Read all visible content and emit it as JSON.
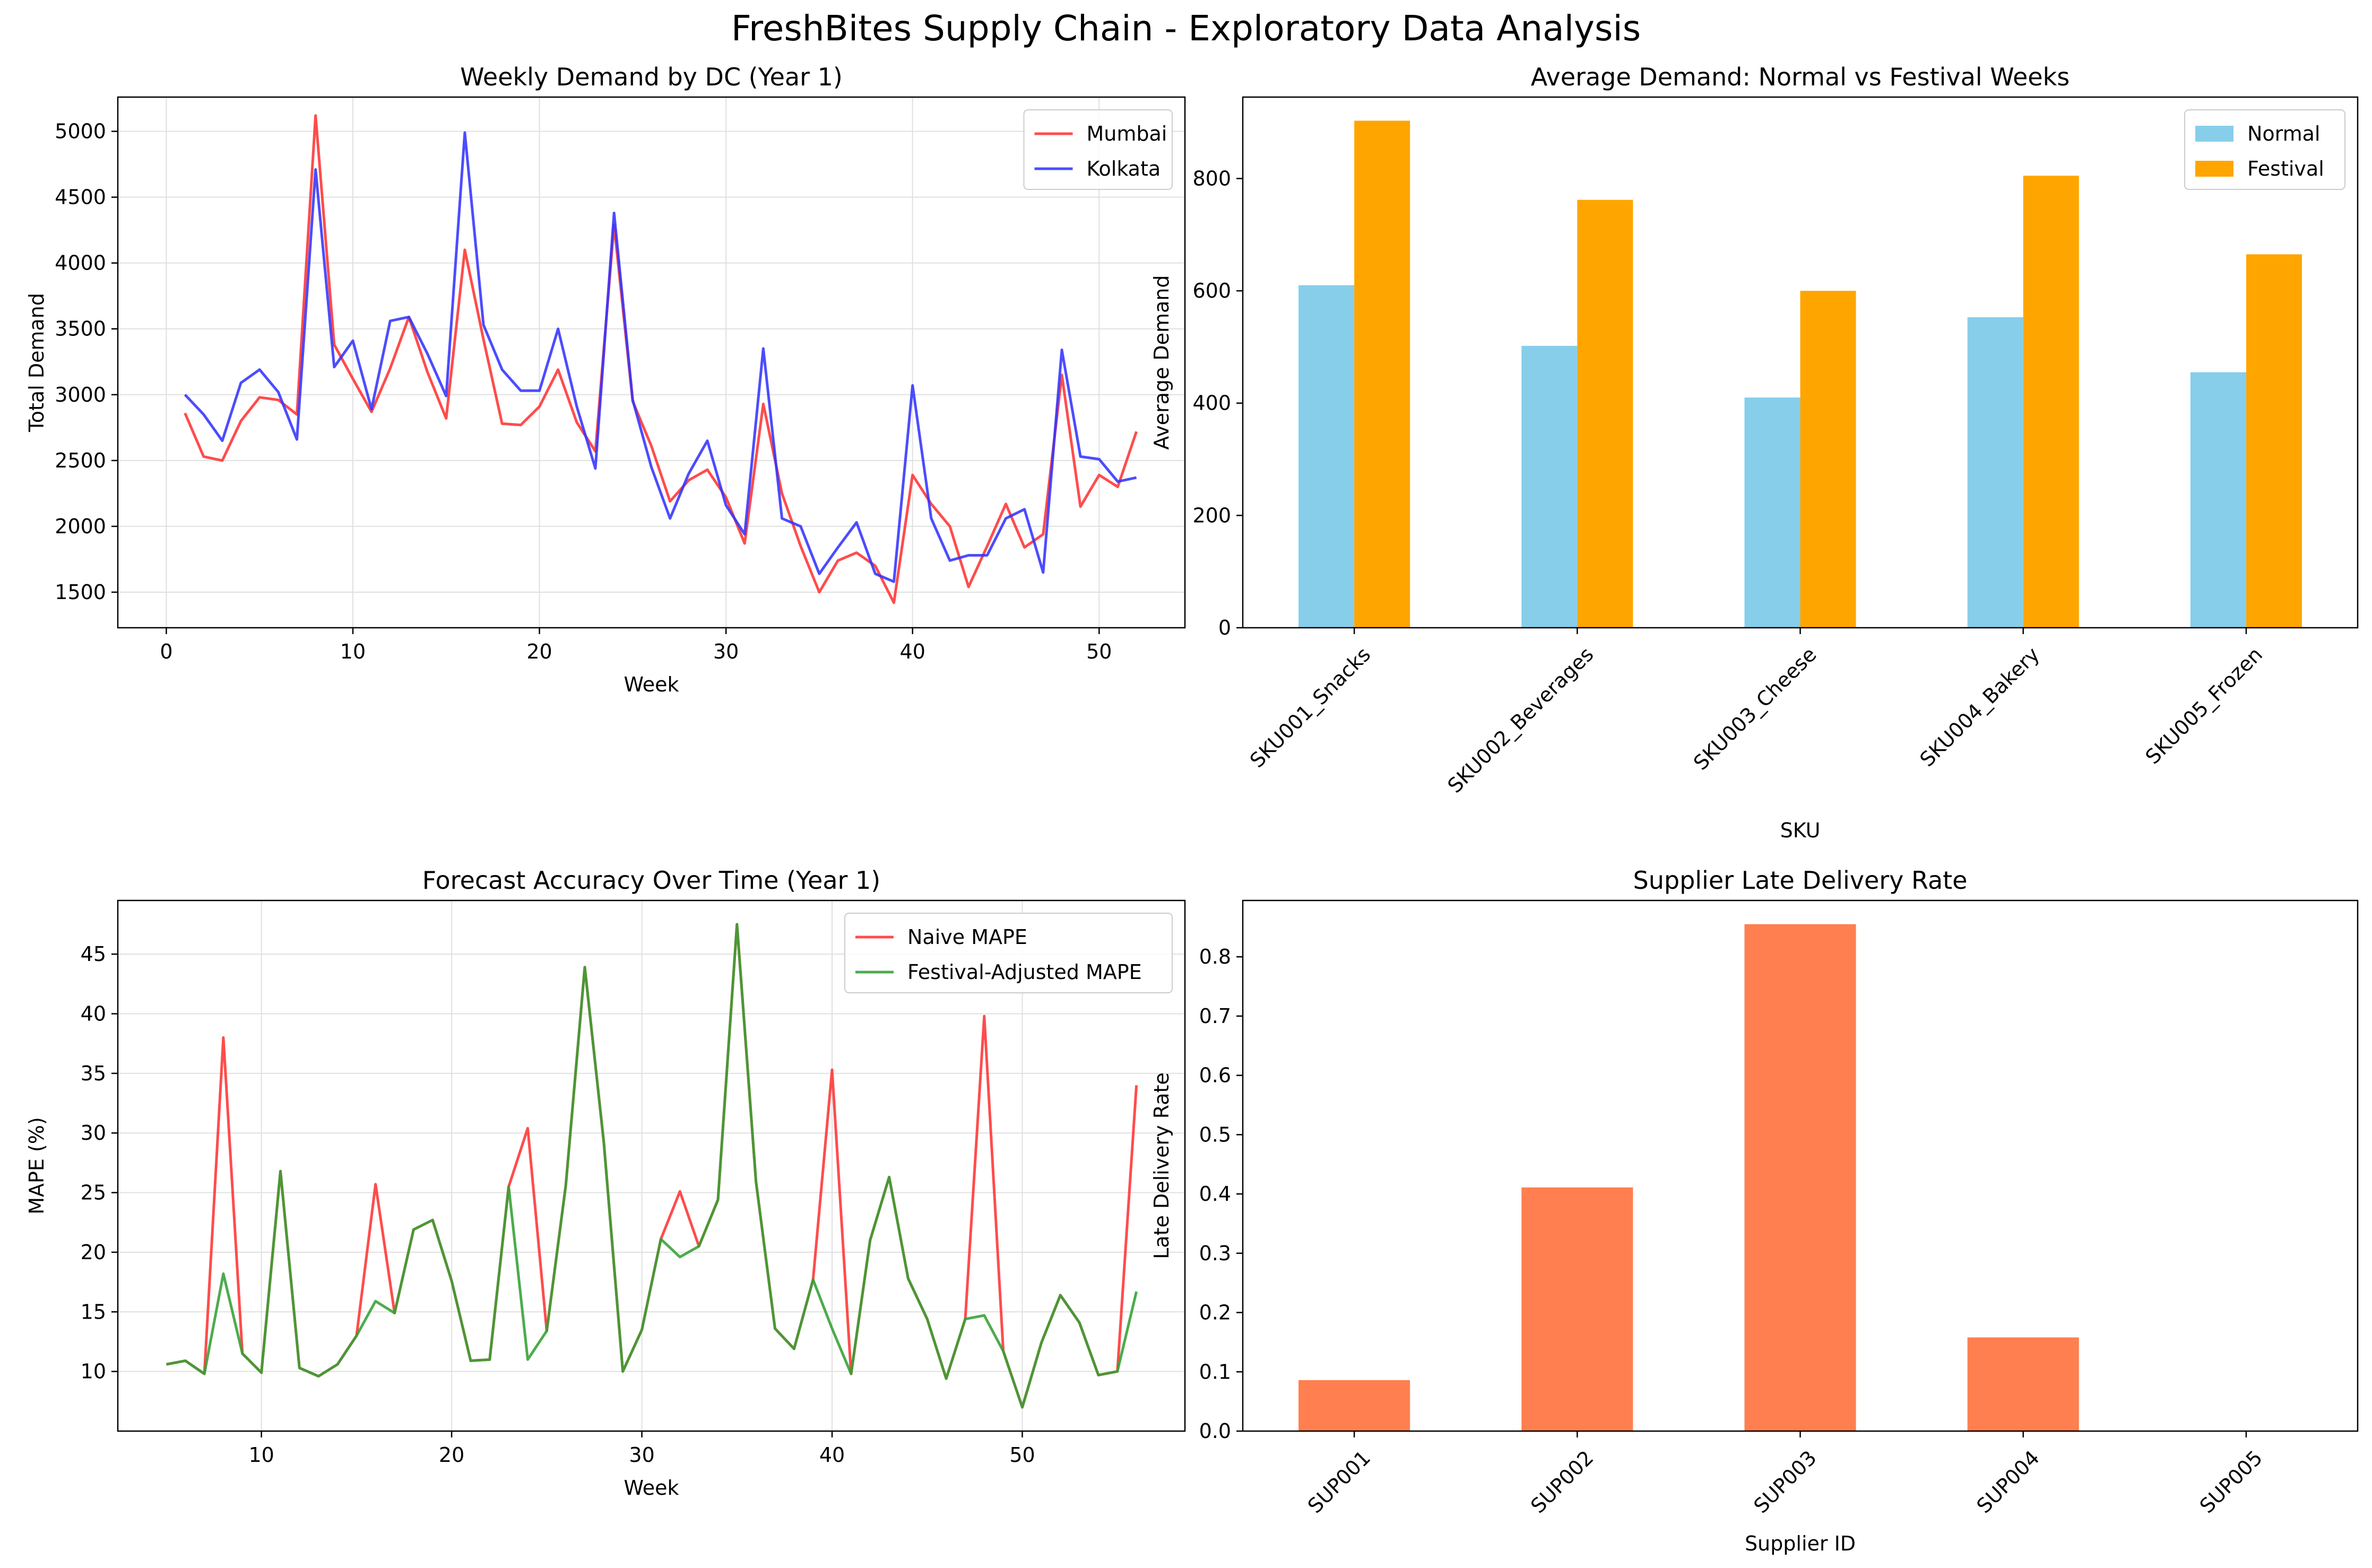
{
  "suptitle": "FreshBites Supply Chain - Exploratory Data Analysis",
  "colors": {
    "mumbai": "#ff3333",
    "kolkata": "#3333ff",
    "normal": "#87ceeb",
    "festival": "#ffa500",
    "naive": "#ff3333",
    "festival_adjusted": "#33a033",
    "overlap": "#3d5a10",
    "supplier_bar": "#ff7f50",
    "grid": "#e0e0e0"
  },
  "chart_data": [
    {
      "id": "demand",
      "type": "line",
      "title": "Weekly Demand by DC (Year 1)",
      "xlabel": "Week",
      "ylabel": "Total Demand",
      "xlim": [
        -2.6,
        54.6
      ],
      "ylim": [
        1230,
        5260
      ],
      "xticks": [
        0,
        10,
        20,
        30,
        40,
        50
      ],
      "yticks": [
        1500,
        2000,
        2500,
        3000,
        3500,
        4000,
        4500,
        5000
      ],
      "grid": true,
      "legend_position": "upper right",
      "x": [
        1,
        2,
        3,
        4,
        5,
        6,
        7,
        8,
        9,
        10,
        11,
        12,
        13,
        14,
        15,
        16,
        17,
        18,
        19,
        20,
        21,
        22,
        23,
        24,
        25,
        26,
        27,
        28,
        29,
        30,
        31,
        32,
        33,
        34,
        35,
        36,
        37,
        38,
        39,
        40,
        41,
        42,
        43,
        44,
        45,
        46,
        47,
        48,
        49,
        50,
        51,
        52
      ],
      "series": [
        {
          "name": "Mumbai",
          "values": [
            2860,
            2530,
            2500,
            2800,
            2980,
            2960,
            2850,
            5120,
            3380,
            3120,
            2870,
            3200,
            3590,
            3170,
            2820,
            4100,
            3420,
            2780,
            2770,
            2910,
            3190,
            2790,
            2570,
            4290,
            2950,
            2610,
            2190,
            2350,
            2430,
            2220,
            1870,
            2930,
            2250,
            1850,
            1500,
            1740,
            1800,
            1700,
            1420,
            2390,
            2170,
            2000,
            1540,
            1850,
            2170,
            1840,
            1940,
            3150,
            2150,
            2390,
            2300,
            2720
          ]
        },
        {
          "name": "Kolkata",
          "values": [
            3000,
            2850,
            2650,
            3090,
            3190,
            3020,
            2660,
            4710,
            3210,
            3410,
            2890,
            3560,
            3590,
            3310,
            2990,
            4990,
            3530,
            3190,
            3030,
            3030,
            3500,
            2910,
            2440,
            4380,
            2960,
            2450,
            2060,
            2400,
            2650,
            2160,
            1940,
            3350,
            2060,
            2000,
            1640,
            1840,
            2030,
            1640,
            1580,
            3070,
            2060,
            1740,
            1780,
            1780,
            2060,
            2130,
            1650,
            3340,
            2530,
            2510,
            2340,
            2370
          ]
        }
      ]
    },
    {
      "id": "avg",
      "type": "bar",
      "title": "Average Demand: Normal vs Festival Weeks",
      "xlabel": "SKU",
      "ylabel": "Average Demand",
      "ylim": [
        0,
        945
      ],
      "yticks": [
        0,
        200,
        400,
        600,
        800
      ],
      "grid": false,
      "legend_position": "upper right",
      "categories": [
        "SKU001_Snacks",
        "SKU002_Beverages",
        "SKU003_Cheese",
        "SKU004_Bakery",
        "SKU005_Frozen"
      ],
      "series": [
        {
          "name": "Normal",
          "values": [
            610,
            502,
            410,
            553,
            455
          ]
        },
        {
          "name": "Festival",
          "values": [
            903,
            762,
            600,
            805,
            665
          ]
        }
      ]
    },
    {
      "id": "mape",
      "type": "line",
      "title": "Forecast Accuracy Over Time (Year 1)",
      "xlabel": "Week",
      "ylabel": "MAPE (%)",
      "xlim": [
        2.45,
        58.55
      ],
      "ylim": [
        5.0,
        49.5
      ],
      "xticks": [
        10,
        20,
        30,
        40,
        50
      ],
      "yticks": [
        10,
        15,
        20,
        25,
        30,
        35,
        40,
        45
      ],
      "grid": true,
      "legend_position": "upper right",
      "x": [
        5,
        6,
        7,
        8,
        9,
        10,
        11,
        12,
        13,
        14,
        15,
        16,
        17,
        18,
        19,
        20,
        21,
        22,
        23,
        24,
        25,
        26,
        27,
        28,
        29,
        30,
        31,
        32,
        33,
        34,
        35,
        36,
        37,
        38,
        39,
        40,
        41,
        42,
        43,
        44,
        45,
        46,
        47,
        48,
        49,
        50,
        51,
        52,
        53,
        54,
        55,
        56
      ],
      "series": [
        {
          "name": "Naive MAPE",
          "values": [
            10.6,
            10.9,
            9.8,
            38.0,
            11.5,
            9.9,
            26.8,
            10.3,
            9.6,
            10.6,
            13.0,
            25.7,
            14.9,
            21.9,
            22.7,
            17.6,
            10.9,
            11.0,
            25.5,
            30.4,
            13.4,
            25.6,
            43.9,
            29.2,
            10.0,
            13.5,
            21.1,
            25.1,
            20.5,
            24.4,
            47.5,
            25.9,
            13.6,
            11.9,
            17.7,
            35.3,
            9.8,
            21.0,
            26.3,
            17.8,
            14.4,
            9.4,
            14.4,
            39.8,
            11.7,
            7.0,
            12.4,
            16.4,
            14.1,
            9.7,
            10.0,
            34.0
          ]
        },
        {
          "name": "Festival-Adjusted MAPE",
          "values": [
            10.6,
            10.9,
            9.8,
            18.2,
            11.5,
            9.9,
            26.8,
            10.3,
            9.6,
            10.6,
            13.0,
            15.9,
            14.9,
            21.9,
            22.7,
            17.6,
            10.9,
            11.0,
            25.5,
            11.0,
            13.4,
            25.6,
            43.9,
            29.2,
            10.0,
            13.5,
            21.1,
            19.6,
            20.5,
            24.4,
            47.5,
            25.9,
            13.6,
            11.9,
            17.7,
            13.6,
            9.8,
            21.0,
            26.3,
            17.8,
            14.4,
            9.4,
            14.4,
            14.7,
            11.7,
            7.0,
            12.4,
            16.4,
            14.1,
            9.7,
            10.0,
            16.7
          ]
        }
      ]
    },
    {
      "id": "late",
      "type": "bar",
      "title": "Supplier Late Delivery Rate",
      "xlabel": "Supplier ID",
      "ylabel": "Late Delivery Rate",
      "ylim": [
        0,
        0.895
      ],
      "yticks": [
        0.0,
        0.1,
        0.2,
        0.3,
        0.4,
        0.5,
        0.6,
        0.7,
        0.8
      ],
      "ytick_format": "0.0",
      "grid": false,
      "categories": [
        "SUP001",
        "SUP002",
        "SUP003",
        "SUP004",
        "SUP005"
      ],
      "values": [
        0.086,
        0.411,
        0.855,
        0.158,
        0.0
      ]
    }
  ]
}
